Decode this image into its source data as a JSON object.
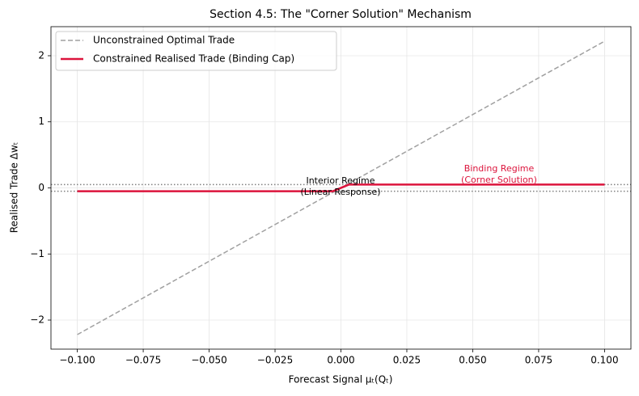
{
  "chart_data": {
    "type": "line",
    "title": "Section 4.5: The \"Corner Solution\" Mechanism",
    "xlabel": "Forecast Signal μₜ(Qₜ)",
    "ylabel": "Realised Trade Δwₜ",
    "xlim": [
      -0.11,
      0.11
    ],
    "ylim": [
      -2.44,
      2.44
    ],
    "xticks": [
      {
        "value": -0.1,
        "label": "−0.100"
      },
      {
        "value": -0.075,
        "label": "−0.075"
      },
      {
        "value": -0.05,
        "label": "−0.050"
      },
      {
        "value": -0.025,
        "label": "−0.025"
      },
      {
        "value": 0,
        "label": "0.000"
      },
      {
        "value": 0.025,
        "label": "0.025"
      },
      {
        "value": 0.05,
        "label": "0.050"
      },
      {
        "value": 0.075,
        "label": "0.075"
      },
      {
        "value": 0.1,
        "label": "0.100"
      }
    ],
    "yticks": [
      {
        "value": -2,
        "label": "−2"
      },
      {
        "value": -1,
        "label": "−1"
      },
      0,
      1,
      2
    ],
    "grid": true,
    "legend": "upper left",
    "hlines": {
      "values": [
        0.05,
        -0.05
      ],
      "color": "#808080"
    },
    "series": [
      {
        "name": "Unconstrained Optimal Trade",
        "color": "#a0a0a0",
        "linestyle": "dashed",
        "x": [
          -0.1,
          0.1
        ],
        "values": [
          -2.22,
          2.22
        ]
      },
      {
        "name": "Constrained Realised Trade (Binding Cap)",
        "color": "#dc143c",
        "linestyle": "solid",
        "x": [
          -0.1,
          -0.003,
          0.003,
          0.1
        ],
        "values": [
          -0.05,
          -0.05,
          0.05,
          0.05
        ]
      }
    ],
    "annotations": [
      {
        "text": [
          "Interior Regime",
          "(Linear Response)"
        ],
        "color": "#000000"
      },
      {
        "text": [
          "Binding Regime",
          "(Corner Solution)"
        ],
        "color": "#dc143c"
      }
    ]
  }
}
